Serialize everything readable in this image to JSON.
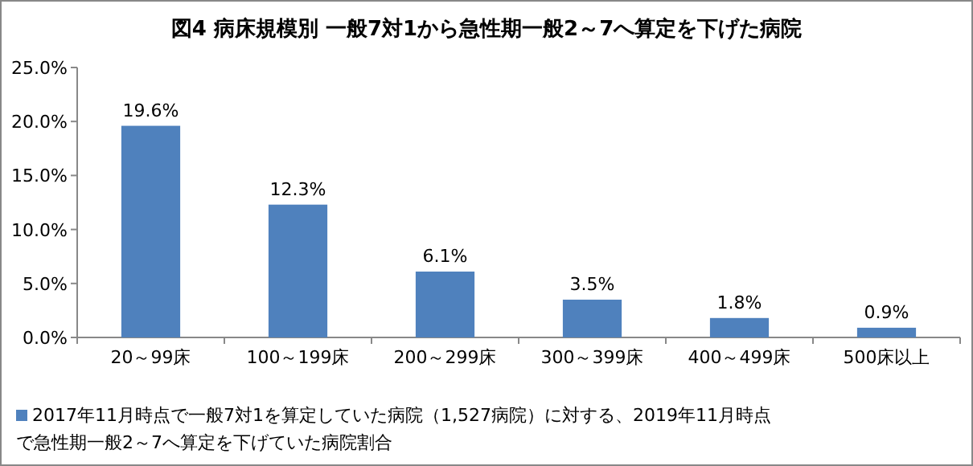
{
  "chart_data": {
    "type": "bar",
    "title": "図4  病床規模別  一般7対1から急性期一般2～7へ算定を下げた病院",
    "categories": [
      "20～99床",
      "100～199床",
      "200～299床",
      "300～399床",
      "400～499床",
      "500床以上"
    ],
    "series": [
      {
        "name": "2017年11月時点で一般7対1を算定していた病院（1,527病院）に対する、2019年11月時点で急性期一般2～7へ算定を下げていた病院割合",
        "color": "#4f81bd",
        "values": [
          19.6,
          12.3,
          6.1,
          3.5,
          1.8,
          0.9
        ],
        "value_labels": [
          "19.6%",
          "12.3%",
          "6.1%",
          "3.5%",
          "1.8%",
          "0.9%"
        ]
      }
    ],
    "ylim": [
      0,
      25
    ],
    "yticks": [
      {
        "value": 0,
        "label": "0.0%"
      },
      {
        "value": 5,
        "label": "5.0%"
      },
      {
        "value": 10,
        "label": "10.0%"
      },
      {
        "value": 15,
        "label": "15.0%"
      },
      {
        "value": 20,
        "label": "20.0%"
      },
      {
        "value": 25,
        "label": "25.0%"
      }
    ],
    "legend": "bottom"
  }
}
